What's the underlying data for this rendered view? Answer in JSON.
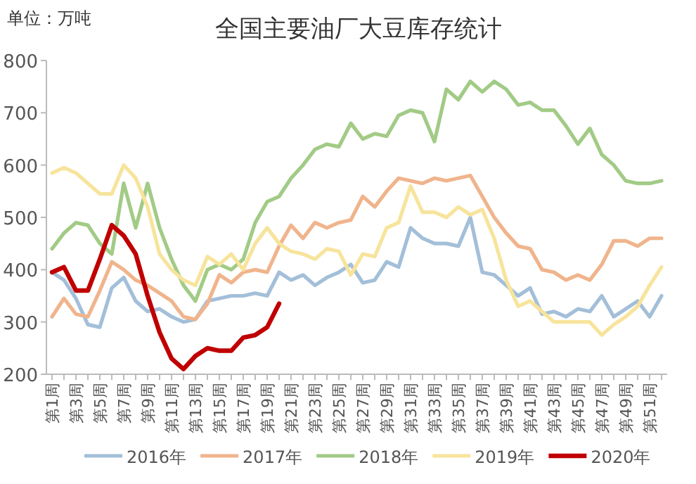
{
  "chart_data": {
    "type": "line",
    "title": "全国主要油厂大豆库存统计",
    "ylabel": "单位：万吨",
    "categories": [
      "第1周",
      null,
      "第3周",
      null,
      "第5周",
      null,
      "第7周",
      null,
      "第9周",
      null,
      "第11周",
      null,
      "第13周",
      null,
      "第15周",
      null,
      "第17周",
      null,
      "第19周",
      null,
      "第21周",
      null,
      "第23周",
      null,
      "第25周",
      null,
      "第27周",
      null,
      "第29周",
      null,
      "第31周",
      null,
      "第33周",
      null,
      "第35周",
      null,
      "第37周",
      null,
      "第39周",
      null,
      "第41周",
      null,
      "第43周",
      null,
      "第45周",
      null,
      "第47周",
      null,
      "第49周",
      null,
      "第51周",
      null
    ],
    "ylim": [
      200,
      800
    ],
    "yticks": [
      200,
      300,
      400,
      500,
      600,
      700,
      800
    ],
    "grid": false,
    "legend": "bottom",
    "marker": "none",
    "line_style": "solid",
    "series": [
      {
        "name": "2016年",
        "color": "#a3bfd9",
        "values": [
          395,
          380,
          345,
          295,
          290,
          365,
          385,
          340,
          320,
          325,
          310,
          300,
          305,
          340,
          345,
          350,
          350,
          355,
          350,
          395,
          380,
          390,
          370,
          385,
          395,
          410,
          375,
          380,
          415,
          405,
          480,
          460,
          450,
          450,
          445,
          500,
          395,
          390,
          370,
          350,
          365,
          315,
          320,
          310,
          325,
          320,
          350,
          310,
          325,
          340,
          310,
          350
        ]
      },
      {
        "name": "2017年",
        "color": "#f0b48c",
        "values": [
          310,
          345,
          315,
          310,
          360,
          415,
          400,
          380,
          370,
          355,
          340,
          310,
          305,
          335,
          390,
          375,
          395,
          400,
          395,
          445,
          485,
          460,
          490,
          480,
          490,
          495,
          540,
          520,
          550,
          575,
          570,
          565,
          575,
          570,
          575,
          580,
          540,
          500,
          470,
          445,
          440,
          400,
          395,
          380,
          390,
          380,
          410,
          455,
          455,
          445,
          460,
          460
        ]
      },
      {
        "name": "2018年",
        "color": "#a2cb86",
        "values": [
          440,
          470,
          490,
          485,
          450,
          430,
          565,
          480,
          565,
          480,
          420,
          370,
          340,
          400,
          410,
          400,
          420,
          490,
          530,
          540,
          575,
          600,
          630,
          640,
          635,
          680,
          650,
          660,
          655,
          695,
          705,
          700,
          645,
          745,
          725,
          760,
          740,
          760,
          745,
          715,
          720,
          705,
          705,
          675,
          640,
          670,
          620,
          600,
          570,
          565,
          565,
          570
        ]
      },
      {
        "name": "2019年",
        "color": "#f7e49c",
        "values": [
          585,
          595,
          585,
          565,
          545,
          545,
          600,
          575,
          520,
          430,
          400,
          380,
          370,
          425,
          410,
          430,
          400,
          450,
          480,
          450,
          435,
          430,
          420,
          440,
          435,
          390,
          430,
          425,
          480,
          490,
          560,
          510,
          510,
          500,
          520,
          505,
          515,
          460,
          380,
          330,
          340,
          320,
          300,
          300,
          300,
          300,
          275,
          295,
          310,
          330,
          370,
          405
        ]
      },
      {
        "name": "2020年",
        "color": "#c00000",
        "values": [
          395,
          405,
          360,
          360,
          420,
          485,
          465,
          430,
          350,
          280,
          230,
          210,
          235,
          250,
          245,
          245,
          270,
          275,
          290,
          335,
          null,
          null,
          null,
          null,
          null,
          null,
          null,
          null,
          null,
          null,
          null,
          null,
          null,
          null,
          null,
          null,
          null,
          null,
          null,
          null,
          null,
          null,
          null,
          null,
          null,
          null,
          null,
          null,
          null,
          null,
          null,
          null
        ]
      }
    ]
  }
}
